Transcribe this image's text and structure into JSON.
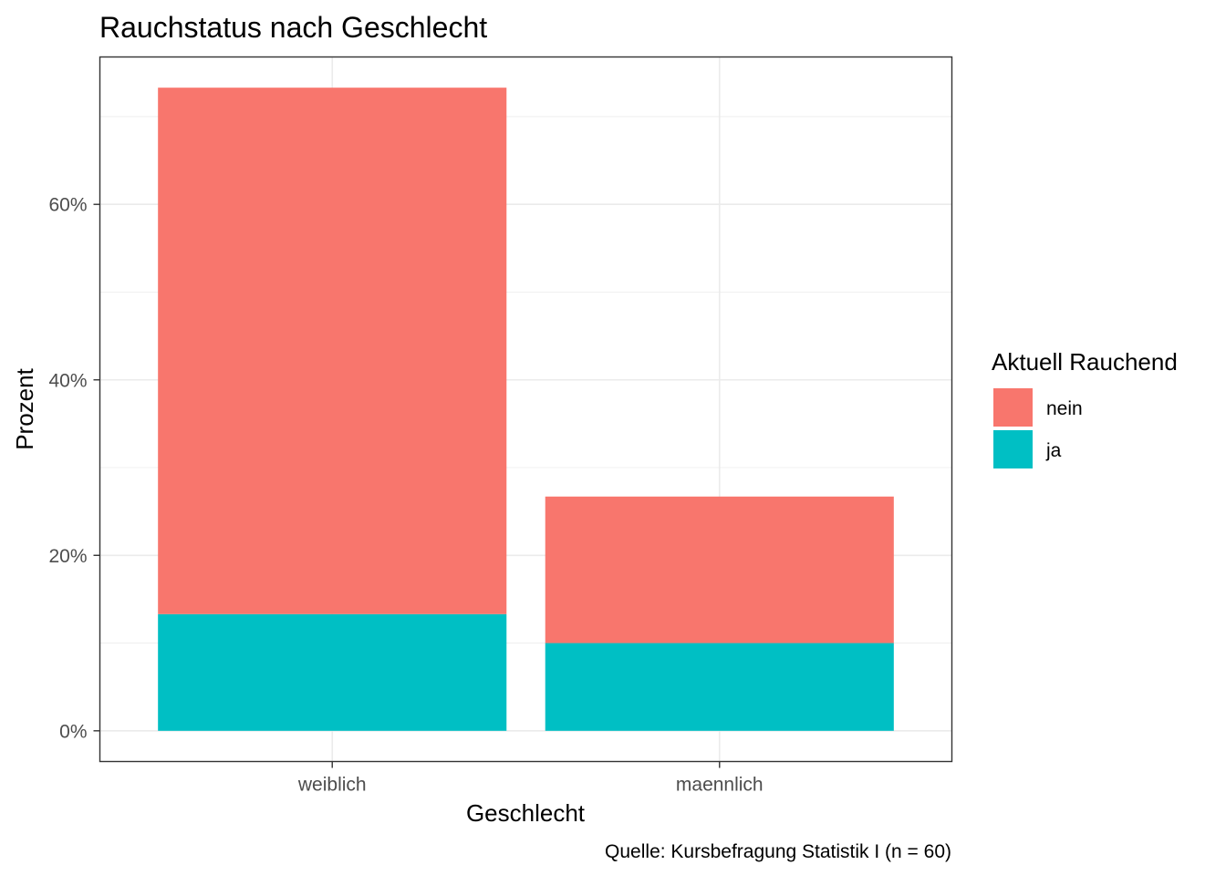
{
  "chart_data": {
    "type": "bar",
    "stacked": true,
    "title": "Rauchstatus nach Geschlecht",
    "xlabel": "Geschlecht",
    "ylabel": "Prozent",
    "caption": "Quelle: Kursbefragung Statistik I (n = 60)",
    "categories": [
      "weiblich",
      "maennlich"
    ],
    "series": [
      {
        "name": "nein",
        "values": [
          60.0,
          16.7
        ],
        "color": "#F8766D"
      },
      {
        "name": "ja",
        "values": [
          13.3,
          10.0
        ],
        "color": "#00BFC4"
      }
    ],
    "yticks": [
      0,
      20,
      40,
      60
    ],
    "ytick_labels": [
      "0%",
      "20%",
      "40%",
      "60%"
    ],
    "ylim": [
      -3.5,
      76.8
    ],
    "grid": true,
    "legend": {
      "title": "Aktuell Rauchend",
      "position": "right"
    }
  }
}
